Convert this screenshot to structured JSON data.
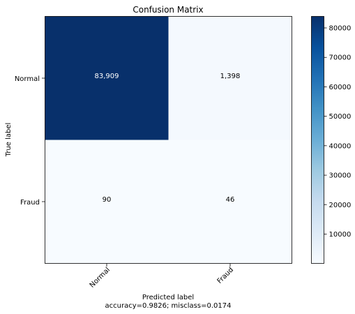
{
  "chart_data": {
    "type": "heatmap",
    "title": "Confusion Matrix",
    "row_labels": [
      "Normal",
      "Fraud"
    ],
    "col_labels": [
      "Normal",
      "Fraud"
    ],
    "matrix": [
      [
        83909,
        1398
      ],
      [
        90,
        46
      ]
    ],
    "cell_text": [
      [
        "83,909",
        "1,398"
      ],
      [
        "90",
        "46"
      ]
    ],
    "ylabel": "True label",
    "xlabel": "Predicted label",
    "xlabel_line2": "accuracy=0.9826; misclass=0.0174",
    "colormap": "Blues",
    "colorbar": {
      "range": [
        46,
        83909
      ],
      "ticks": [
        10000,
        20000,
        30000,
        40000,
        50000,
        60000,
        70000,
        80000
      ],
      "tick_labels": [
        "10000",
        "20000",
        "30000",
        "40000",
        "50000",
        "60000",
        "70000",
        "80000"
      ]
    },
    "colors": {
      "low": "#f7fbff",
      "high": "#08306b"
    }
  }
}
